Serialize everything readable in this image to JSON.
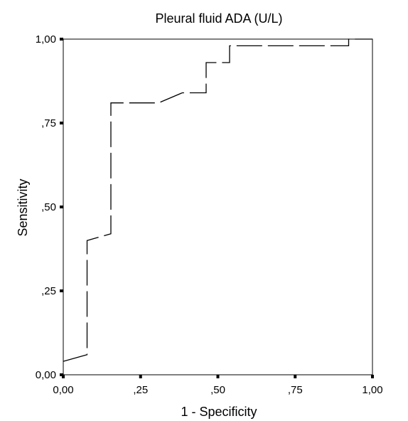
{
  "chart_data": {
    "type": "line",
    "title": "Pleural fluid ADA (U/L)",
    "xlabel": "1 - Specificity",
    "ylabel": "Sensitivity",
    "xlim": [
      0,
      1
    ],
    "ylim": [
      0,
      1
    ],
    "x_ticks": [
      {
        "value": 0,
        "label": "0,00"
      },
      {
        "value": 0.25,
        "label": ",25"
      },
      {
        "value": 0.5,
        "label": ",50"
      },
      {
        "value": 0.75,
        "label": ",75"
      },
      {
        "value": 1,
        "label": "1,00"
      }
    ],
    "y_ticks": [
      {
        "value": 0,
        "label": "0,00"
      },
      {
        "value": 0.25,
        "label": ",25"
      },
      {
        "value": 0.5,
        "label": ",50"
      },
      {
        "value": 0.75,
        "label": ",75"
      },
      {
        "value": 1,
        "label": "1,00"
      }
    ],
    "grid": false,
    "series": [
      {
        "line_style": "dashed",
        "color": "#000000",
        "x": [
          0,
          0.077,
          0.077,
          0.154,
          0.154,
          0.308,
          0.385,
          0.462,
          0.462,
          0.538,
          0.538,
          0.923,
          0.923,
          1
        ],
        "y": [
          0.04,
          0.06,
          0.4,
          0.42,
          0.81,
          0.81,
          0.84,
          0.84,
          0.93,
          0.93,
          0.98,
          0.98,
          1.0,
          1.0
        ]
      }
    ]
  }
}
